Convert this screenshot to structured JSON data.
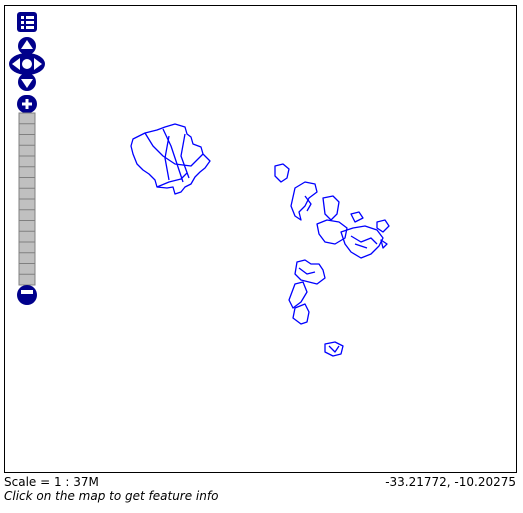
{
  "map": {
    "scale_text": "Scale = 1 : 37M",
    "coordinates": "-33.21772, -10.20275",
    "hint": "Click on the map to get feature info"
  },
  "controls": {
    "layer_switcher_icon": "layer-list-icon",
    "pan_icons": [
      "pan-up-icon",
      "pan-left-icon",
      "pan-right-icon",
      "pan-down-icon"
    ],
    "zoom_in_icon": "plus-icon",
    "zoom_out_icon": "minus-icon",
    "zoom_levels": 16
  },
  "colors": {
    "control": "#00008b",
    "feature_stroke": "#0000ff",
    "zoom_bar": "#c0c0c0"
  }
}
